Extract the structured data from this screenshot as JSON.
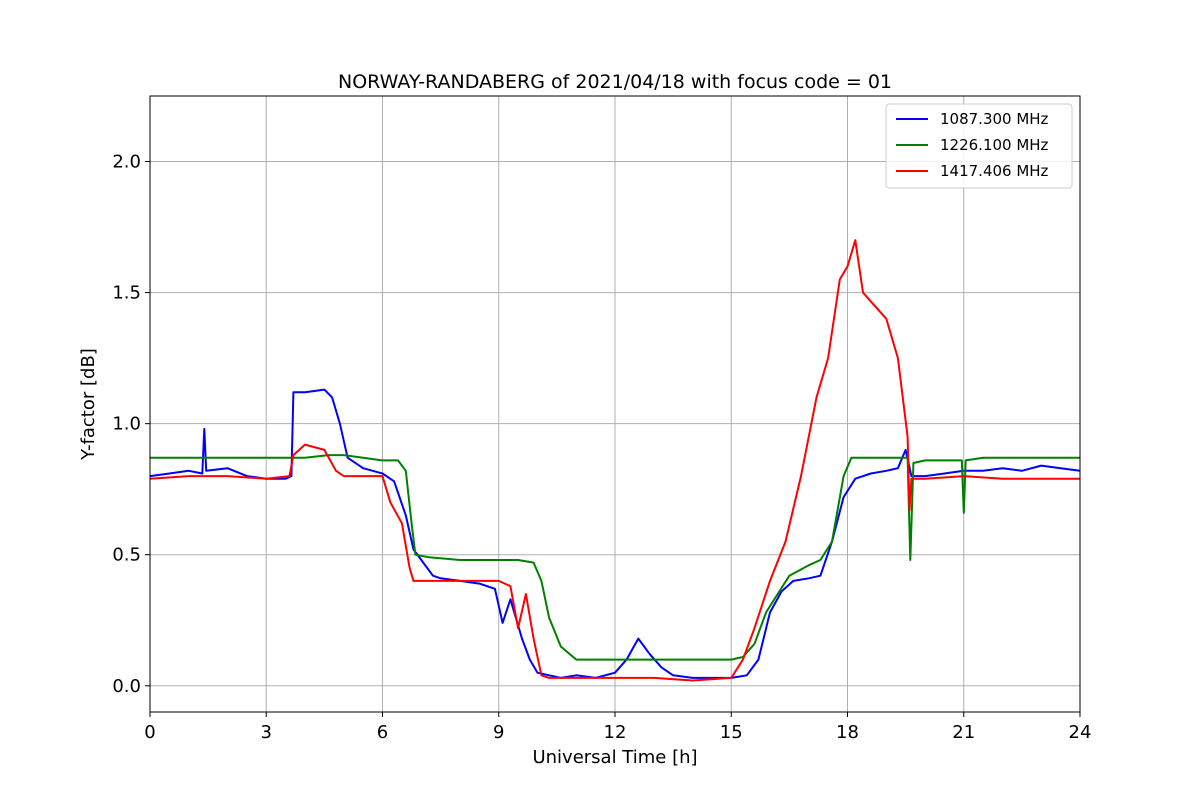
{
  "chart_data": {
    "type": "line",
    "title": "NORWAY-RANDABERG of 2021/04/18 with focus code = 01",
    "xlabel": "Universal Time [h]",
    "ylabel": "Y-factor [dB]",
    "xlim": [
      0,
      24
    ],
    "ylim": [
      -0.1,
      2.25
    ],
    "xticks": [
      0,
      3,
      6,
      9,
      12,
      15,
      18,
      21,
      24
    ],
    "xtick_labels": [
      "0",
      "3",
      "6",
      "9",
      "12",
      "15",
      "18",
      "21",
      "24"
    ],
    "yticks": [
      0.0,
      0.5,
      1.0,
      1.5,
      2.0
    ],
    "ytick_labels": [
      "0.0",
      "0.5",
      "1.0",
      "1.5",
      "2.0"
    ],
    "grid": true,
    "legend_position": "top-right",
    "series": [
      {
        "name": "1087.300 MHz",
        "color": "#0000ff",
        "x": [
          0,
          0.5,
          1,
          1.35,
          1.4,
          1.45,
          2,
          2.5,
          3,
          3.5,
          3.65,
          3.7,
          4,
          4.5,
          4.7,
          4.9,
          5.1,
          5.5,
          6,
          6.3,
          6.6,
          6.8,
          7,
          7.3,
          7.5,
          8,
          8.5,
          8.9,
          9.1,
          9.3,
          9.6,
          9.8,
          10,
          10.3,
          10.6,
          11,
          11.5,
          12,
          12.3,
          12.6,
          12.9,
          13.2,
          13.5,
          14,
          14.5,
          15,
          15.4,
          15.7,
          16,
          16.3,
          16.6,
          17,
          17.3,
          17.6,
          17.9,
          18.2,
          18.6,
          19,
          19.3,
          19.5,
          19.65,
          20,
          20.5,
          21,
          21.5,
          22,
          22.5,
          23,
          23.5,
          24
        ],
        "y": [
          0.8,
          0.81,
          0.82,
          0.81,
          0.98,
          0.82,
          0.83,
          0.8,
          0.79,
          0.79,
          0.8,
          1.12,
          1.12,
          1.13,
          1.1,
          1.0,
          0.87,
          0.83,
          0.81,
          0.78,
          0.65,
          0.52,
          0.48,
          0.42,
          0.41,
          0.4,
          0.39,
          0.37,
          0.24,
          0.33,
          0.18,
          0.1,
          0.05,
          0.04,
          0.03,
          0.04,
          0.03,
          0.05,
          0.1,
          0.18,
          0.12,
          0.07,
          0.04,
          0.03,
          0.03,
          0.03,
          0.04,
          0.1,
          0.28,
          0.36,
          0.4,
          0.41,
          0.42,
          0.55,
          0.72,
          0.79,
          0.81,
          0.82,
          0.83,
          0.9,
          0.8,
          0.8,
          0.81,
          0.82,
          0.82,
          0.83,
          0.82,
          0.84,
          0.83,
          0.82
        ]
      },
      {
        "name": "1226.100 MHz",
        "color": "#008000",
        "x": [
          0,
          1,
          2,
          3,
          3.6,
          4,
          4.6,
          5,
          5.5,
          6,
          6.4,
          6.6,
          6.75,
          6.85,
          7.2,
          8,
          9,
          9.5,
          9.9,
          10.1,
          10.3,
          10.6,
          11,
          11.5,
          12,
          13,
          14,
          15,
          15.3,
          15.6,
          15.9,
          16.2,
          16.5,
          17,
          17.3,
          17.6,
          17.9,
          18.1,
          18.5,
          19,
          19.55,
          19.62,
          19.7,
          20,
          20.5,
          20.95,
          21.0,
          21.05,
          21.5,
          22,
          23,
          24
        ],
        "y": [
          0.87,
          0.87,
          0.87,
          0.87,
          0.87,
          0.87,
          0.88,
          0.88,
          0.87,
          0.86,
          0.86,
          0.82,
          0.62,
          0.5,
          0.49,
          0.48,
          0.48,
          0.48,
          0.47,
          0.4,
          0.26,
          0.15,
          0.1,
          0.1,
          0.1,
          0.1,
          0.1,
          0.1,
          0.11,
          0.16,
          0.28,
          0.35,
          0.42,
          0.46,
          0.48,
          0.55,
          0.8,
          0.87,
          0.87,
          0.87,
          0.87,
          0.48,
          0.85,
          0.86,
          0.86,
          0.86,
          0.66,
          0.86,
          0.87,
          0.87,
          0.87,
          0.87
        ]
      },
      {
        "name": "1417.406 MHz",
        "color": "#ff0000",
        "x": [
          0,
          1,
          2,
          3,
          3.6,
          3.7,
          4,
          4.5,
          4.8,
          5,
          5.5,
          6,
          6.2,
          6.5,
          6.7,
          6.8,
          7,
          8,
          9,
          9.3,
          9.5,
          9.7,
          9.9,
          10.1,
          10.3,
          10.6,
          11,
          12,
          13,
          14,
          15,
          15.3,
          15.6,
          16,
          16.4,
          16.8,
          17.2,
          17.5,
          17.8,
          18.0,
          18.2,
          18.4,
          18.7,
          19,
          19.3,
          19.55,
          19.6,
          19.65,
          20,
          21,
          22,
          23,
          24
        ],
        "y": [
          0.79,
          0.8,
          0.8,
          0.79,
          0.8,
          0.88,
          0.92,
          0.9,
          0.82,
          0.8,
          0.8,
          0.8,
          0.7,
          0.62,
          0.45,
          0.4,
          0.4,
          0.4,
          0.4,
          0.38,
          0.22,
          0.35,
          0.18,
          0.04,
          0.03,
          0.03,
          0.03,
          0.03,
          0.03,
          0.02,
          0.03,
          0.1,
          0.22,
          0.4,
          0.55,
          0.8,
          1.1,
          1.25,
          1.55,
          1.6,
          1.7,
          1.5,
          1.45,
          1.4,
          1.25,
          0.95,
          0.67,
          0.79,
          0.79,
          0.8,
          0.79,
          0.79,
          0.79
        ]
      }
    ]
  }
}
